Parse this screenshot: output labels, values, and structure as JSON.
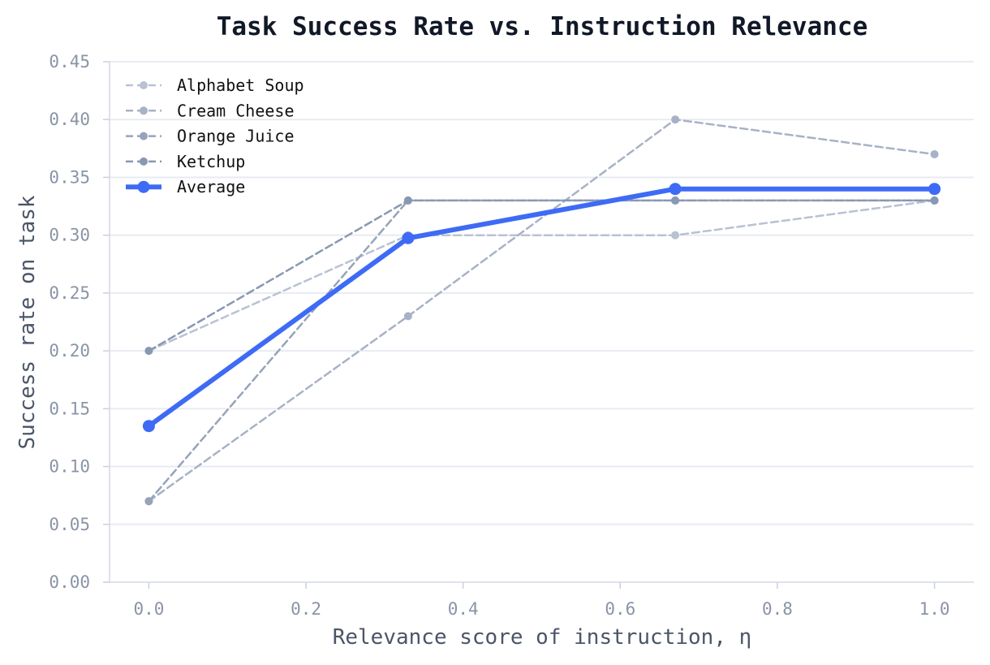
{
  "chart_data": {
    "type": "line",
    "title": "Task Success Rate vs. Instruction Relevance",
    "xlabel": "Relevance score of instruction, η",
    "ylabel": "Success rate on task",
    "xlim": [
      -0.05,
      1.05
    ],
    "ylim": [
      0.0,
      0.45
    ],
    "x_ticks": [
      "0.0",
      "0.2",
      "0.4",
      "0.6",
      "0.8",
      "1.0"
    ],
    "y_ticks": [
      "0.00",
      "0.05",
      "0.10",
      "0.15",
      "0.20",
      "0.25",
      "0.30",
      "0.35",
      "0.40",
      "0.45"
    ],
    "grid": "horizontal",
    "legend_position": "top-left",
    "x": [
      0.0,
      0.33,
      0.67,
      1.0
    ],
    "series": [
      {
        "name": "Alphabet Soup",
        "values": [
          0.2,
          0.3,
          0.3,
          0.33
        ],
        "color": "#b9c1d3",
        "style": "dashed"
      },
      {
        "name": "Cream Cheese",
        "values": [
          0.07,
          0.23,
          0.4,
          0.37
        ],
        "color": "#a8b2c6",
        "style": "dashed"
      },
      {
        "name": "Orange Juice",
        "values": [
          0.07,
          0.33,
          0.33,
          0.33
        ],
        "color": "#97a3bb",
        "style": "dashed"
      },
      {
        "name": "Ketchup",
        "values": [
          0.2,
          0.33,
          0.33,
          0.33
        ],
        "color": "#8998b2",
        "style": "dashed"
      },
      {
        "name": "Average",
        "values": [
          0.135,
          0.2975,
          0.34,
          0.34
        ],
        "color": "#3d6bf5",
        "style": "solid"
      }
    ]
  }
}
